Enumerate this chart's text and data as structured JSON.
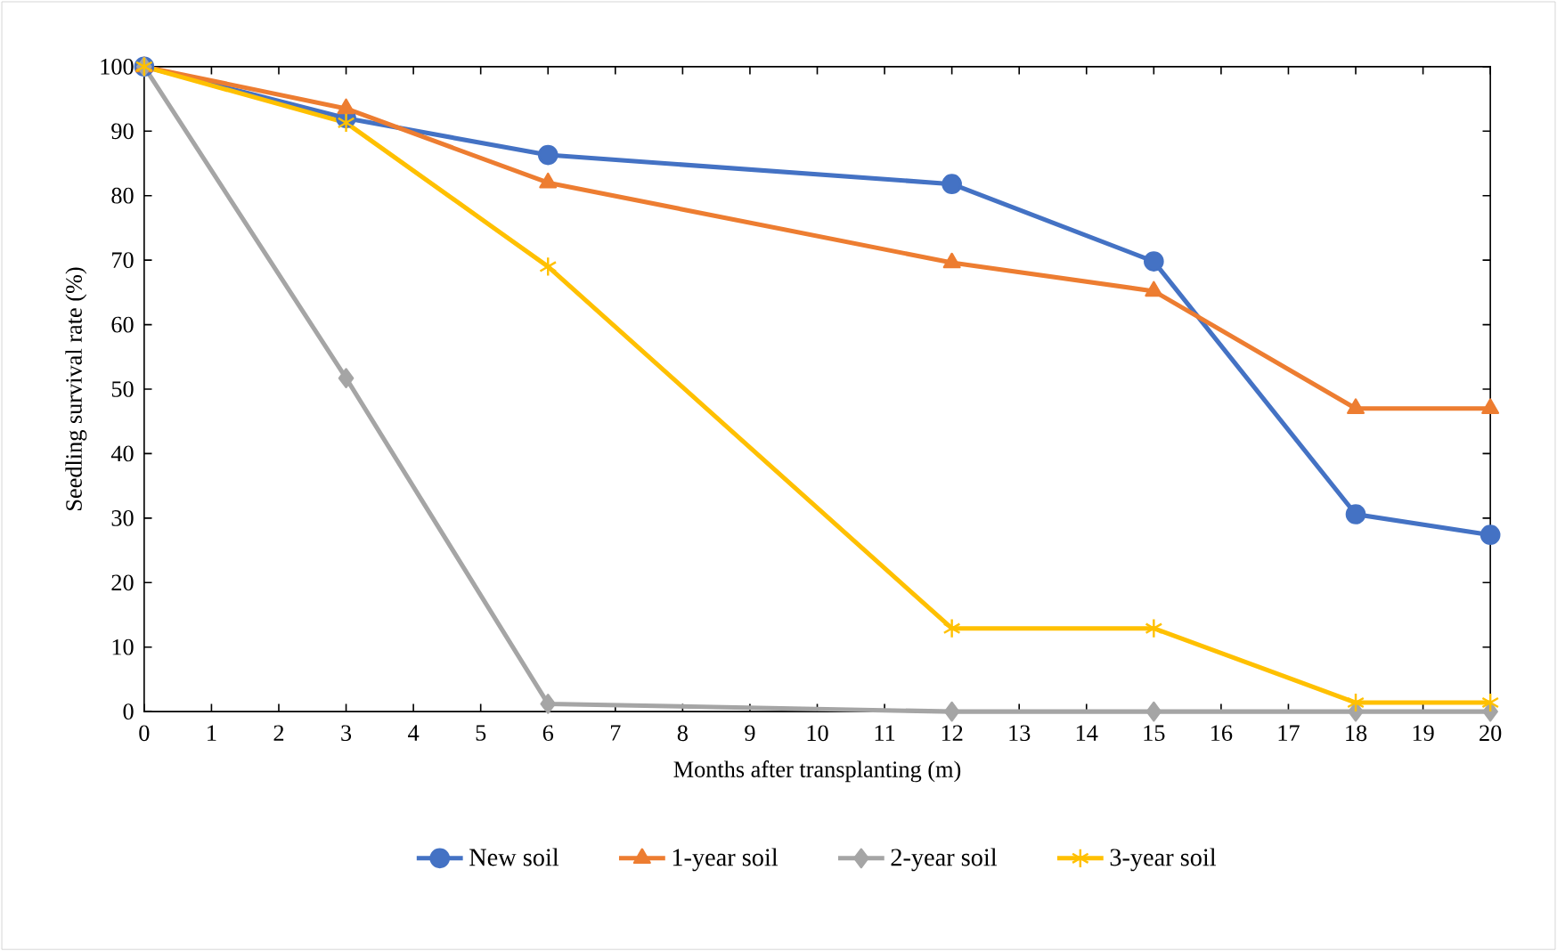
{
  "chart_data": {
    "type": "line",
    "xlabel": "Months after transplanting (m)",
    "ylabel": "Seedling survival rate (%)",
    "xlim": [
      0,
      20
    ],
    "xticks": [
      0,
      1,
      2,
      3,
      4,
      5,
      6,
      7,
      8,
      9,
      10,
      11,
      12,
      13,
      14,
      15,
      16,
      17,
      18,
      19,
      20
    ],
    "ylim": [
      0,
      100
    ],
    "yticks": [
      0,
      10,
      20,
      30,
      40,
      50,
      60,
      70,
      80,
      90,
      100
    ],
    "grid": false,
    "legend": "bottom",
    "line_style": "solid",
    "x": [
      0,
      3,
      6,
      12,
      15,
      18,
      20
    ],
    "series": [
      {
        "name": "New soil",
        "color": "#4472c4",
        "marker": "circle",
        "values": [
          100,
          92,
          86.3,
          81.8,
          69.8,
          30.6,
          27.4
        ]
      },
      {
        "name": "1-year soil",
        "color": "#ed7d31",
        "marker": "triangle",
        "values": [
          100,
          93.5,
          82,
          69.6,
          65.2,
          47,
          47
        ]
      },
      {
        "name": "2-year soil",
        "color": "#a5a5a5",
        "marker": "diamond",
        "values": [
          100,
          51.7,
          1.2,
          0,
          0,
          0,
          0
        ]
      },
      {
        "name": "3-year soil",
        "color": "#ffc000",
        "marker": "cross",
        "values": [
          100,
          91.3,
          69,
          12.9,
          12.9,
          1.4,
          1.4
        ]
      }
    ]
  }
}
